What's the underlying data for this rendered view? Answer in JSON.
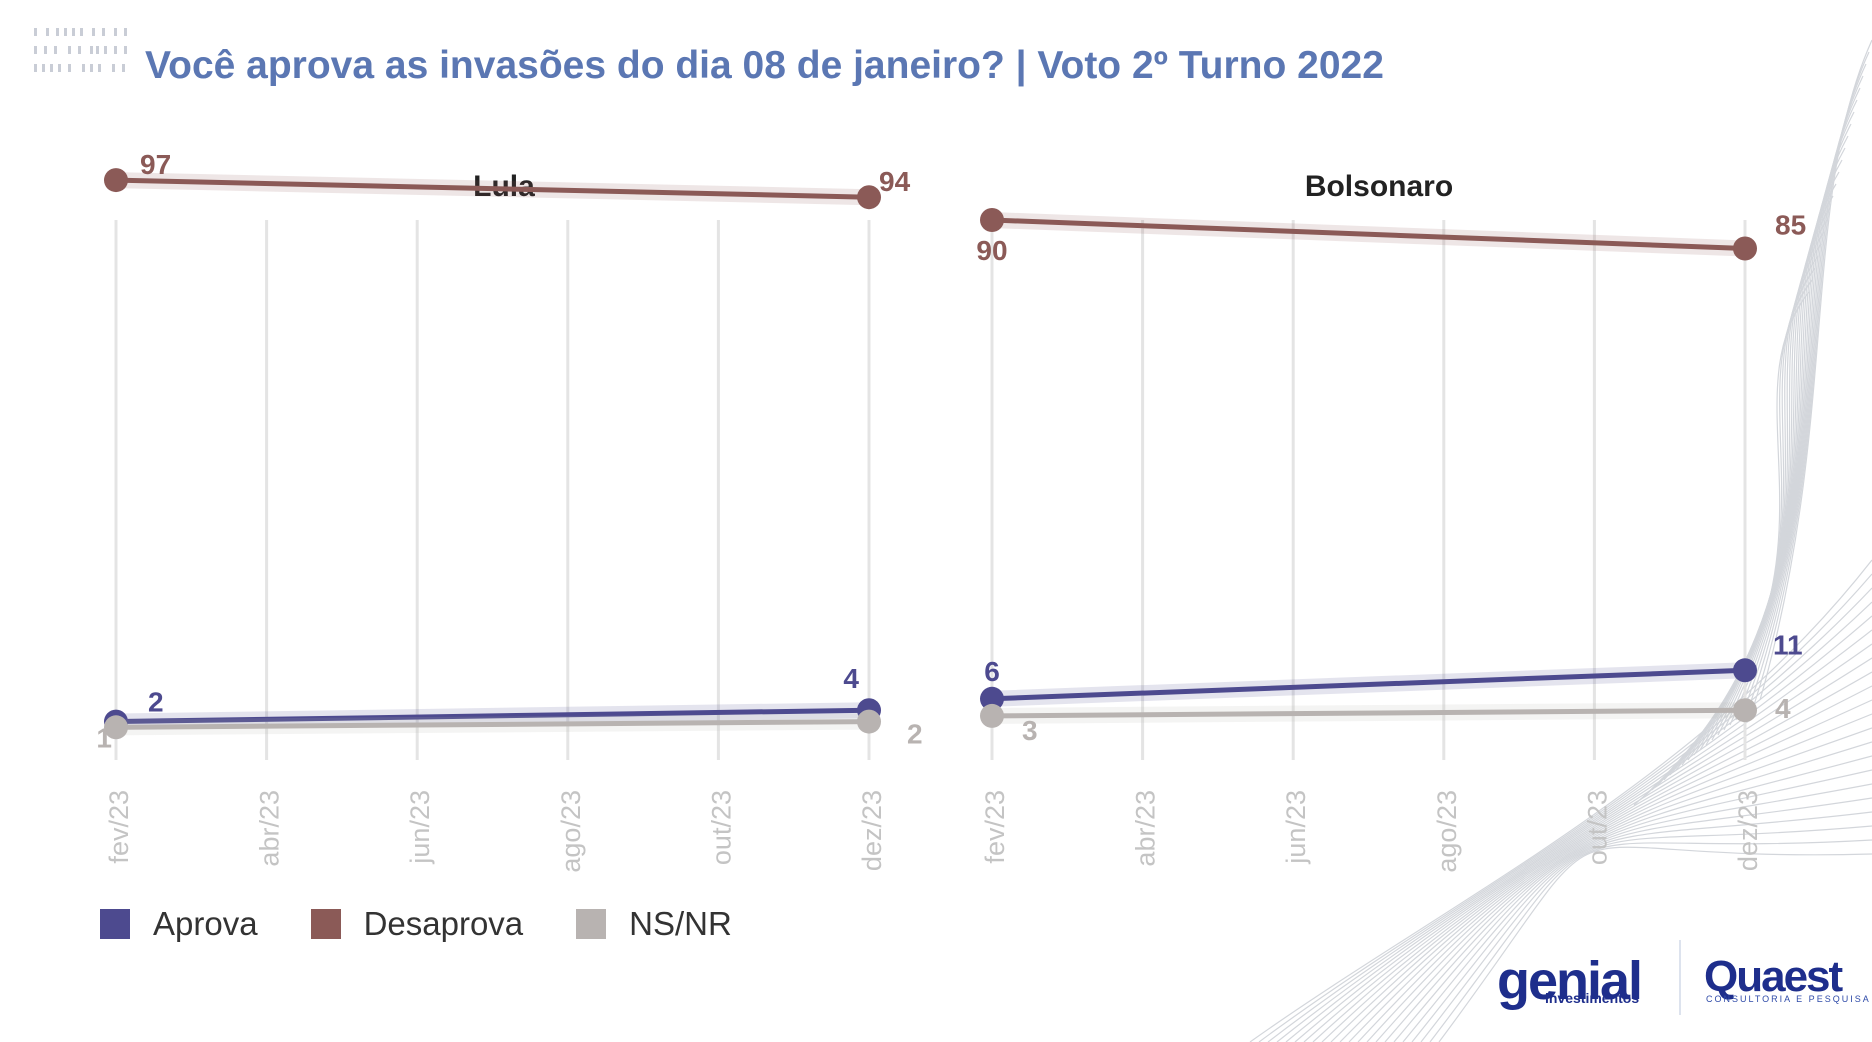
{
  "title": "Você aprova as invasões do dia 08 de janeiro? | Voto 2º Turno 2022",
  "colors": {
    "title": "#5b77b3",
    "aprova": "#4d4a8f",
    "desaprova": "#8b5a57",
    "nsnr": "#b8b3b1",
    "grid": "#e4e4e4",
    "tick": "#c4c4c4"
  },
  "legend": [
    {
      "label": "Aprova",
      "color": "#4d4a8f"
    },
    {
      "label": "Desaprova",
      "color": "#8b5a57"
    },
    {
      "label": "NS/NR",
      "color": "#b8b3b1"
    }
  ],
  "logos": {
    "genial": "genial",
    "genial_sub": "investimentos",
    "quaest": "Quaest",
    "quaest_sub": "CONSULTORIA E PESQUISA"
  },
  "chart_data": [
    {
      "type": "line",
      "title": "Lula",
      "x_ticks": [
        "fev/23",
        "abr/23",
        "jun/23",
        "ago/23",
        "out/23",
        "dez/23"
      ],
      "x": [
        "fev/23",
        "dez/23"
      ],
      "ylim": [
        0,
        100
      ],
      "grid": "vertical",
      "series": [
        {
          "name": "Desaprova",
          "values": [
            97,
            94
          ],
          "color": "#8b5a57",
          "labels": [
            "97",
            "94"
          ]
        },
        {
          "name": "Aprova",
          "values": [
            2,
            4
          ],
          "color": "#4d4a8f",
          "labels": [
            "2",
            "4"
          ]
        },
        {
          "name": "NS/NR",
          "values": [
            1,
            2
          ],
          "color": "#b8b3b1",
          "labels": [
            "1",
            "2"
          ]
        }
      ]
    },
    {
      "type": "line",
      "title": "Bolsonaro",
      "x_ticks": [
        "fev/23",
        "abr/23",
        "jun/23",
        "ago/23",
        "out/23",
        "dez/23"
      ],
      "x": [
        "fev/23",
        "dez/23"
      ],
      "ylim": [
        0,
        100
      ],
      "grid": "vertical",
      "series": [
        {
          "name": "Desaprova",
          "values": [
            90,
            85
          ],
          "color": "#8b5a57",
          "labels": [
            "90",
            "85"
          ]
        },
        {
          "name": "Aprova",
          "values": [
            6,
            11
          ],
          "color": "#4d4a8f",
          "labels": [
            "6",
            "11"
          ]
        },
        {
          "name": "NS/NR",
          "values": [
            3,
            4
          ],
          "color": "#b8b3b1",
          "labels": [
            "3",
            "4"
          ]
        }
      ]
    }
  ]
}
